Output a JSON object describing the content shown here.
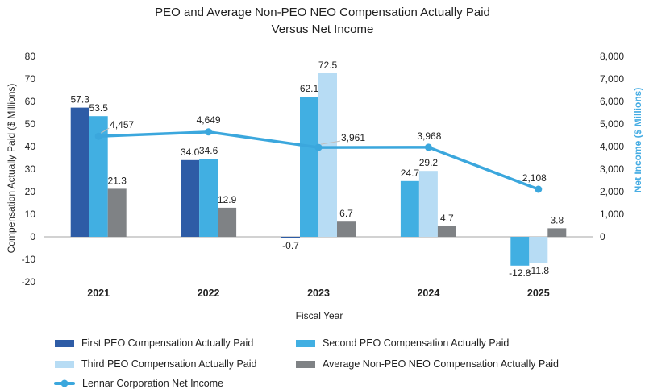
{
  "title": {
    "line1": "PEO and Average Non-PEO NEO Compensation Actually Paid",
    "line2": "Versus Net Income"
  },
  "axes": {
    "left_title": "Compensation Actually Paid ($ Millions)",
    "right_title": "Net Income ($ Millions)",
    "x_title": "Fiscal Year"
  },
  "chart_data": {
    "type": "bar+line combo",
    "title": "PEO and Average Non-PEO NEO Compensation Actually Paid Versus Net Income",
    "categories": [
      "2021",
      "2022",
      "2023",
      "2024",
      "2025"
    ],
    "bar_series": [
      {
        "name": "First PEO Compensation Actually Paid",
        "color": "#2e5ca6",
        "values": [
          57.3,
          34.0,
          -0.7,
          null,
          null
        ]
      },
      {
        "name": "Second PEO Compensation Actually Paid",
        "color": "#41afe2",
        "values": [
          53.5,
          34.6,
          62.1,
          24.7,
          -12.8
        ]
      },
      {
        "name": "Third PEO Compensation Actually Paid",
        "color": "#b7dcf4",
        "values": [
          null,
          null,
          72.5,
          29.2,
          -11.8
        ]
      },
      {
        "name": "Average Non-PEO NEO Compensation Actually Paid",
        "color": "#7f8285",
        "values": [
          21.3,
          12.9,
          6.7,
          4.7,
          3.8
        ]
      }
    ],
    "line_series": {
      "name": "Lennar Corporation Net Income",
      "color": "#3ba7dd",
      "values": [
        4457,
        4649,
        3961,
        3968,
        2108
      ],
      "labels": [
        "4,457",
        "4,649",
        "3,961",
        "3,968",
        "2,108"
      ]
    },
    "left_axis": {
      "title": "Compensation Actually Paid ($ Millions)",
      "min": -20,
      "max": 80,
      "step": 10,
      "color": "#1f1f1f"
    },
    "right_axis": {
      "title": "Net Income ($ Millions)",
      "min": 0,
      "max": 8000,
      "step": 1000,
      "color": "#45ace3"
    },
    "xlabel": "Fiscal Year",
    "legend_position": "bottom",
    "grid": "off",
    "line_label_offsets": [
      [
        29,
        -14,
        1
      ],
      [
        0,
        -15,
        0
      ],
      [
        43,
        -12,
        1
      ],
      [
        1,
        -14,
        0
      ],
      [
        -5,
        -14,
        0
      ]
    ]
  }
}
